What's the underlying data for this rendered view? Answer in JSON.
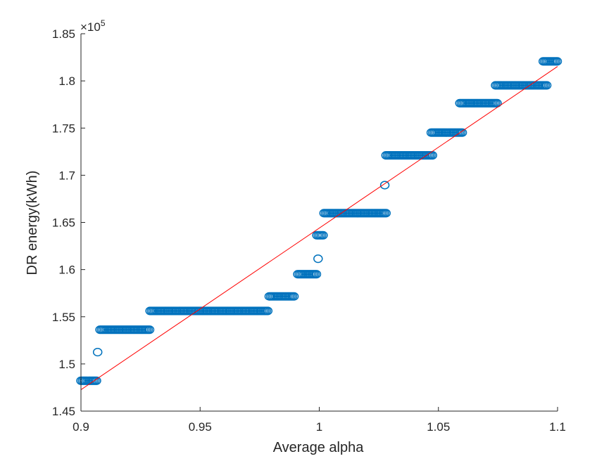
{
  "chart_data": {
    "type": "scatter",
    "xlabel": "Average alpha",
    "ylabel": "DR energy(kWh)",
    "y_exponent_label": "×10",
    "y_exponent_power": "5",
    "xlim": [
      0.9,
      1.1
    ],
    "ylim": [
      1.45,
      1.85
    ],
    "x_ticks": [
      0.9,
      0.95,
      1.0,
      1.05,
      1.1
    ],
    "x_tick_labels": [
      "0.9",
      "0.95",
      "1",
      "1.05",
      "1.1"
    ],
    "y_ticks": [
      1.45,
      1.5,
      1.55,
      1.6,
      1.65,
      1.7,
      1.75,
      1.8,
      1.85
    ],
    "y_tick_labels": [
      "1.45",
      "1.5",
      "1.55",
      "1.6",
      "1.65",
      "1.7",
      "1.75",
      "1.8",
      "1.85"
    ],
    "grid": false,
    "marker_color": "#0072BD",
    "fit_color": "#FF0000",
    "series": [
      {
        "type": "scatter",
        "clusters": [
          {
            "x_start": 0.9,
            "x_end": 0.907,
            "y": 1.4822
          },
          {
            "x": 0.907,
            "y": 1.5125
          },
          {
            "x_start": 0.908,
            "x_end": 0.929,
            "y": 1.5363
          },
          {
            "x_start": 0.929,
            "x_end": 0.979,
            "y": 1.5562
          },
          {
            "x_start": 0.979,
            "x_end": 0.99,
            "y": 1.5716
          },
          {
            "x_start": 0.991,
            "x_end": 0.999,
            "y": 1.5951
          },
          {
            "x": 0.9995,
            "y": 1.6115
          },
          {
            "x_start": 0.999,
            "x_end": 1.002,
            "y": 1.6364
          },
          {
            "x_start": 1.002,
            "x_end": 1.028,
            "y": 1.6598
          },
          {
            "x": 1.0275,
            "y": 1.6895
          },
          {
            "x_start": 1.028,
            "x_end": 1.048,
            "y": 1.7211
          },
          {
            "x_start": 1.047,
            "x_end": 1.06,
            "y": 1.7452
          },
          {
            "x_start": 1.059,
            "x_end": 1.075,
            "y": 1.7764
          },
          {
            "x_start": 1.074,
            "x_end": 1.096,
            "y": 1.7953
          },
          {
            "x_start": 1.094,
            "x_end": 1.1,
            "y": 1.8207
          }
        ]
      },
      {
        "type": "line",
        "x": [
          0.9,
          1.1
        ],
        "y": [
          1.4727,
          1.8153
        ]
      }
    ]
  }
}
